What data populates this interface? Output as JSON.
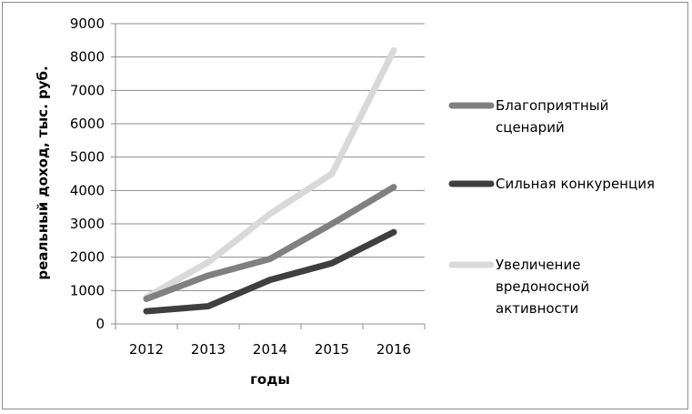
{
  "chart_data": {
    "type": "line",
    "x": [
      "2012",
      "2013",
      "2014",
      "2015",
      "2016"
    ],
    "xlabel": "годы",
    "ylabel": "реальный доход, тыс. руб.",
    "ylim": [
      0,
      9000
    ],
    "yticks": [
      "0",
      "1000",
      "2000",
      "3000",
      "4000",
      "5000",
      "6000",
      "7000",
      "8000",
      "9000"
    ],
    "grid": "horizontal",
    "legend_position": "right",
    "series": [
      {
        "name": "Благоприятный сценарий",
        "values": [
          750,
          1450,
          1950,
          3000,
          4100
        ],
        "color": "#808080"
      },
      {
        "name": "Сильная конкуренция",
        "values": [
          380,
          530,
          1320,
          1820,
          2750
        ],
        "color": "#3f3f3f"
      },
      {
        "name": "Увеличение вредоносной активности",
        "values": [
          800,
          1850,
          3300,
          4500,
          8200
        ],
        "color": "#d9d9d9"
      }
    ]
  },
  "legend_lines": [
    [
      "Благоприятный",
      "сценарий"
    ],
    [
      "Сильная конкуренция"
    ],
    [
      "Увеличение",
      "вредоносной",
      "активности"
    ]
  ]
}
